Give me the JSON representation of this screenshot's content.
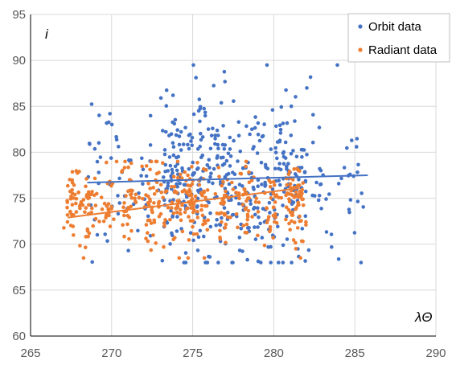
{
  "chart_data": {
    "type": "scatter",
    "xlabel": "λΘ",
    "ylabel": "i",
    "xlim": [
      265,
      290
    ],
    "ylim": [
      60,
      95
    ],
    "x_ticks": [
      265,
      270,
      275,
      280,
      285,
      290
    ],
    "y_ticks": [
      60,
      65,
      70,
      75,
      80,
      85,
      90,
      95
    ],
    "grid": "vertical-and-horizontal",
    "legend_position": "top-right",
    "series": [
      {
        "name": "Orbit data",
        "color": "#4472C4",
        "x_range": [
          268.5,
          285.8
        ],
        "y_range": [
          68.0,
          89.5
        ],
        "trendline": {
          "x": [
            268.5,
            285.8
          ],
          "y": [
            76.7,
            77.5
          ]
        }
      },
      {
        "name": "Radiant data",
        "color": "#ED7D31",
        "x_range": [
          267.2,
          281.8
        ],
        "y_range": [
          68.5,
          79.0
        ],
        "trendline": {
          "x": [
            267.3,
            281.6
          ],
          "y": [
            72.9,
            76.1
          ]
        }
      }
    ]
  }
}
